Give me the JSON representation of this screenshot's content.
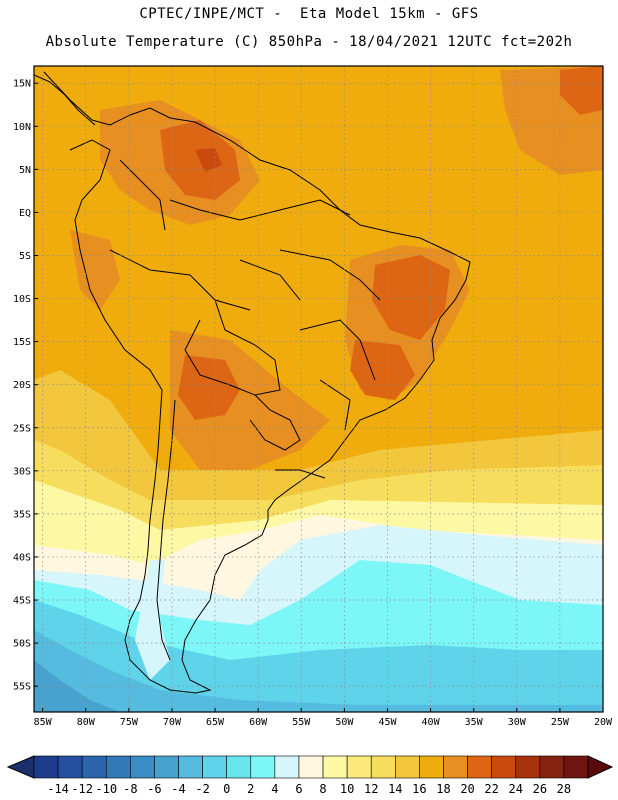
{
  "header": {
    "line1": "CPTEC/INPE/MCT -  Eta Model 15km - GFS",
    "line2": "Absolute Temperature (C) 850hPa - 18/04/2021 12UTC fct=202h"
  },
  "map": {
    "lat_labels": [
      "15N",
      "10N",
      "5N",
      "EQ",
      "5S",
      "10S",
      "15S",
      "20S",
      "25S",
      "30S",
      "35S",
      "40S",
      "45S",
      "50S",
      "55S"
    ],
    "lat_values": [
      15,
      10,
      5,
      0,
      -5,
      -10,
      -15,
      -20,
      -25,
      -30,
      -35,
      -40,
      -45,
      -50,
      -55
    ],
    "lon_labels": [
      "85W",
      "80W",
      "75W",
      "70W",
      "65W",
      "60W",
      "55W",
      "50W",
      "45W",
      "40W",
      "35W",
      "30W",
      "25W",
      "20W"
    ],
    "lon_values": [
      -85,
      -80,
      -75,
      -70,
      -65,
      -60,
      -55,
      -50,
      -45,
      -40,
      -35,
      -30,
      -25,
      -20
    ],
    "extent": {
      "lon_min": -86,
      "lon_max": -20,
      "lat_min": -58,
      "lat_max": 17
    }
  },
  "colorbar": {
    "labels": [
      "-14",
      "-12",
      "-10",
      "-8",
      "-6",
      "-4",
      "-2",
      "0",
      "2",
      "4",
      "6",
      "8",
      "10",
      "12",
      "14",
      "16",
      "18",
      "20",
      "22",
      "24",
      "26",
      "28"
    ],
    "colors": [
      "#1e3c8c",
      "#23509f",
      "#2b66ad",
      "#3279b8",
      "#3b8cc4",
      "#48a2d0",
      "#56bcdf",
      "#5fd3e9",
      "#68e6ee",
      "#7cf6f6",
      "#d7f6fb",
      "#fff7e0",
      "#fdf8a4",
      "#fbe97c",
      "#f7dd5e",
      "#f2c63d",
      "#f0ac0c",
      "#e88f22",
      "#dc6613",
      "#c94a0c",
      "#a6310b",
      "#85210f",
      "#6e1510"
    ],
    "left_arrow_color": "#1b2f6c",
    "right_arrow_color": "#5a0a0a"
  },
  "field_colors": {
    "dark_orange": "#dc6613",
    "orange": "#e88f22",
    "amber": "#f0ac0c",
    "gold": "#f2c63d",
    "yellow": "#f7dd5e",
    "light_yellow": "#fbe97c",
    "pale_yellow": "#fdf8a4",
    "cream": "#fff7e0",
    "pale_cyan": "#d7f6fb",
    "cyan": "#7cf6f6",
    "turquoise": "#5fd3e9",
    "sky": "#56bcdf"
  }
}
